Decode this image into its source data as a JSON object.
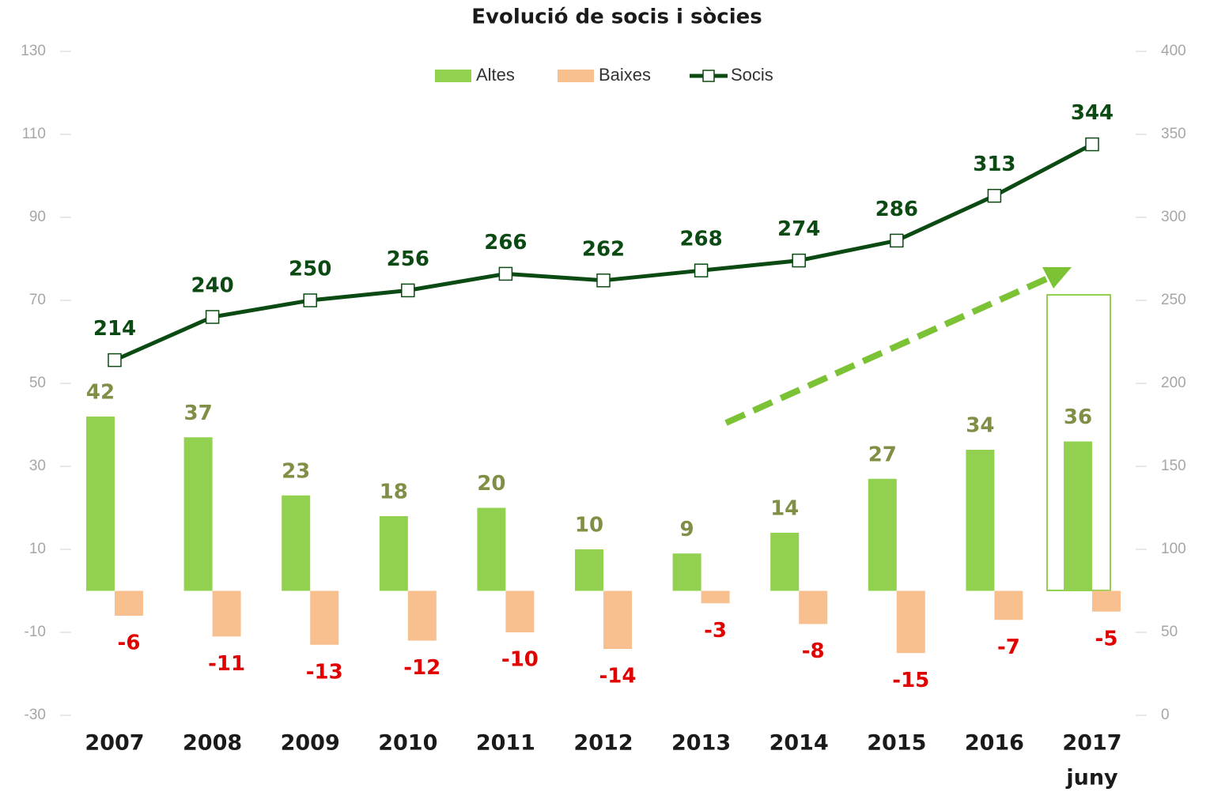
{
  "chart_data": {
    "type": "bar",
    "title": "Evolució de socis i sòcies",
    "categories": [
      "2007",
      "2008",
      "2009",
      "2010",
      "2011",
      "2012",
      "2013",
      "2014",
      "2015",
      "2016",
      "2017"
    ],
    "category_note": "juny",
    "series": [
      {
        "name": "Altes",
        "color": "#92d050",
        "label_color": "#7f8f45",
        "values": [
          42,
          37,
          23,
          18,
          20,
          10,
          9,
          14,
          27,
          34,
          36
        ]
      },
      {
        "name": "Baixes",
        "color": "#f9c08f",
        "label_color": "#e00000",
        "values": [
          -6,
          -11,
          -13,
          -12,
          -10,
          -14,
          -3,
          -8,
          -15,
          -7,
          -5
        ]
      },
      {
        "name": "Socis",
        "type": "line",
        "axis": "y2",
        "color": "#0b4a12",
        "label_color": "#0b4a12",
        "values": [
          214,
          240,
          250,
          256,
          266,
          262,
          268,
          274,
          286,
          313,
          344
        ]
      }
    ],
    "ylim": [
      -30,
      130
    ],
    "yticks": [
      -30,
      -10,
      10,
      30,
      50,
      70,
      90,
      110,
      130
    ],
    "y2lim": [
      0,
      400
    ],
    "y2ticks": [
      0,
      50,
      100,
      150,
      200,
      250,
      300,
      350,
      400
    ],
    "legend": "top",
    "grid": false
  }
}
